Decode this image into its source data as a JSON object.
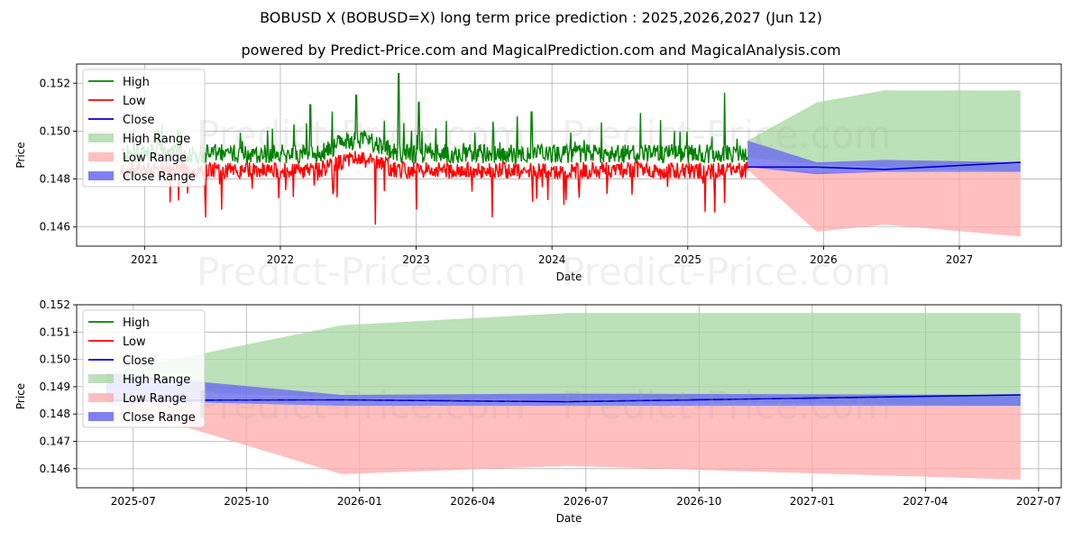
{
  "title": "BOBUSD X (BOBUSD=X) long term price prediction : 2025,2026,2027 (Jun 12)",
  "subtitle": "powered by Predict-Price.com and MagicalPrediction.com and MagicalAnalysis.com",
  "watermark": "Predict-Price.com",
  "colors": {
    "high": "#008000",
    "low": "#ff0000",
    "close": "#0000cc",
    "high_range": "#a6d5a0",
    "low_range": "#ffaaaa",
    "close_range": "#6a6af0"
  },
  "legend": [
    "High",
    "Low",
    "Close",
    "High Range",
    "Low Range",
    "Close Range"
  ],
  "chart_data": [
    {
      "type": "line",
      "title": "",
      "xlabel": "Date",
      "ylabel": "Price",
      "xlim": [
        2020.5,
        2027.75
      ],
      "ylim": [
        0.1452,
        0.1528
      ],
      "xticks": [
        2021,
        2022,
        2023,
        2024,
        2025,
        2026,
        2027
      ],
      "xtick_labels": [
        "2021",
        "2022",
        "2023",
        "2024",
        "2025",
        "2026",
        "2027"
      ],
      "yticks": [
        0.146,
        0.148,
        0.15,
        0.152
      ],
      "ytick_labels": [
        "0.146",
        "0.148",
        "0.150",
        "0.152"
      ],
      "history": {
        "x_start": 2020.83,
        "x_end": 2025.44,
        "high_base": 0.1489,
        "low_base": 0.1485,
        "spikes_high": [
          [
            2022.22,
            0.1511
          ],
          [
            2022.56,
            0.1515
          ],
          [
            2022.87,
            0.1524
          ],
          [
            2023.02,
            0.1512
          ],
          [
            2023.85,
            0.1508
          ],
          [
            2025.27,
            0.1516
          ]
        ],
        "spikes_low": [
          [
            2021.45,
            0.1464
          ],
          [
            2022.7,
            0.1461
          ],
          [
            2023.56,
            0.1464
          ],
          [
            2025.2,
            0.1466
          ]
        ]
      },
      "forecast": {
        "x": [
          2025.44,
          2025.95,
          2026.45,
          2027.45
        ],
        "close": [
          0.1485,
          0.1485,
          0.1484,
          0.1487
        ],
        "high_upper": [
          0.1496,
          0.1512,
          0.1517,
          0.1517
        ],
        "high_lower": [
          0.1489,
          0.1486,
          0.1485,
          0.1483
        ],
        "low_upper": [
          0.1485,
          0.1483,
          0.1483,
          0.1483
        ],
        "low_lower": [
          0.1484,
          0.1458,
          0.1461,
          0.1456
        ],
        "close_upper": [
          0.1496,
          0.1487,
          0.1488,
          0.1487
        ],
        "close_lower": [
          0.1485,
          0.1482,
          0.1483,
          0.1483
        ]
      }
    },
    {
      "type": "line",
      "title": "",
      "xlabel": "Date",
      "ylabel": "Price",
      "xlim": [
        2025.375,
        2027.55
      ],
      "ylim": [
        0.1453,
        0.152
      ],
      "xticks": [
        2025.5,
        2025.75,
        2026.0,
        2026.25,
        2026.5,
        2026.75,
        2027.0,
        2027.25,
        2027.5
      ],
      "xtick_labels": [
        "2025-07",
        "2025-10",
        "2026-01",
        "2026-04",
        "2026-07",
        "2026-10",
        "2027-01",
        "2027-04",
        "2027-07"
      ],
      "yticks": [
        0.146,
        0.147,
        0.148,
        0.149,
        0.15,
        0.151,
        0.152
      ],
      "ytick_labels": [
        "0.146",
        "0.147",
        "0.148",
        "0.149",
        "0.150",
        "0.151",
        "0.152"
      ],
      "forecast": {
        "x": [
          2025.44,
          2025.96,
          2026.46,
          2027.46
        ],
        "close": [
          0.1485,
          0.14852,
          0.14845,
          0.1487
        ],
        "high_upper": [
          0.1495,
          0.15125,
          0.1517,
          0.1517
        ],
        "high_lower": [
          0.1489,
          0.1486,
          0.1485,
          0.1483
        ],
        "low_upper": [
          0.1485,
          0.1483,
          0.1483,
          0.1483
        ],
        "low_lower": [
          0.1484,
          0.1458,
          0.1461,
          0.1456
        ],
        "close_upper": [
          0.1495,
          0.1487,
          0.14875,
          0.1487
        ],
        "close_lower": [
          0.1485,
          0.1483,
          0.1483,
          0.1483
        ]
      }
    }
  ]
}
